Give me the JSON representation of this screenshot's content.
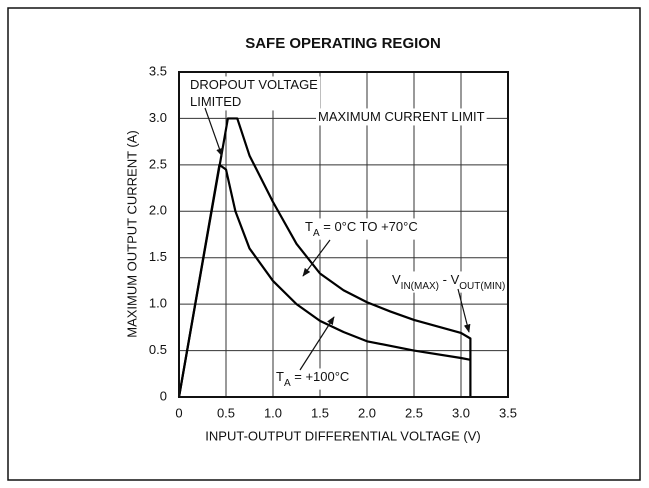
{
  "chart_data": {
    "type": "line",
    "title": "SAFE OPERATING REGION",
    "xlabel": "INPUT-OUTPUT DIFFERENTIAL VOLTAGE (V)",
    "ylabel": "MAXIMUM OUTPUT CURRENT (A)",
    "xlim": [
      0,
      3.5
    ],
    "ylim": [
      0,
      3.5
    ],
    "xticks": [
      0,
      0.5,
      {
        "value": 1,
        "label": "1.0"
      },
      1.5,
      {
        "value": 2,
        "label": "2.0"
      },
      2.5,
      {
        "value": 3,
        "label": "3.0"
      },
      3.5
    ],
    "yticks": [
      0,
      0.5,
      {
        "value": 1,
        "label": "1.0"
      },
      1.5,
      {
        "value": 2,
        "label": "2.0"
      },
      2.5,
      {
        "value": 3,
        "label": "3.0"
      },
      3.5
    ],
    "grid": true,
    "series": [
      {
        "color": "#000000",
        "x": [
          0,
          0.52,
          0.62,
          0.75,
          1.0,
          1.25,
          1.5,
          1.75,
          2.0,
          2.25,
          2.5,
          2.75,
          3.0,
          3.1,
          3.1
        ],
        "values": [
          0,
          3.0,
          3.0,
          2.6,
          2.1,
          1.65,
          1.33,
          1.15,
          1.02,
          0.92,
          0.83,
          0.76,
          0.69,
          0.63,
          0
        ]
      },
      {
        "color": "#000000",
        "x": [
          0,
          0.43,
          0.5,
          0.6,
          0.75,
          1.0,
          1.25,
          1.5,
          1.75,
          2.0,
          2.5,
          3.0,
          3.1
        ],
        "values": [
          0,
          2.5,
          2.45,
          2.0,
          1.6,
          1.25,
          1.0,
          0.82,
          0.7,
          0.6,
          0.5,
          0.42,
          0.4
        ]
      }
    ],
    "annotations": [
      {
        "lines": [
          [
            {
              "text": "DROPOUT VOLTAGE"
            }
          ],
          [
            {
              "text": "LIMITED"
            }
          ]
        ]
      },
      {
        "lines": [
          [
            {
              "text": "MAXIMUM CURRENT LIMIT"
            }
          ]
        ]
      },
      {
        "lines": [
          [
            {
              "text": "T"
            },
            {
              "text": "A",
              "sub": true
            },
            {
              "text": " = 0°C TO +70°C"
            }
          ]
        ]
      },
      {
        "lines": [
          [
            {
              "text": "V"
            },
            {
              "text": "IN(MAX)",
              "sub": true
            },
            {
              "text": " - V"
            },
            {
              "text": "OUT(MIN)",
              "sub": true
            }
          ]
        ]
      },
      {
        "lines": [
          [
            {
              "text": "T"
            },
            {
              "text": "A",
              "sub": true
            },
            {
              "text": " = +100°C"
            }
          ]
        ]
      }
    ]
  }
}
